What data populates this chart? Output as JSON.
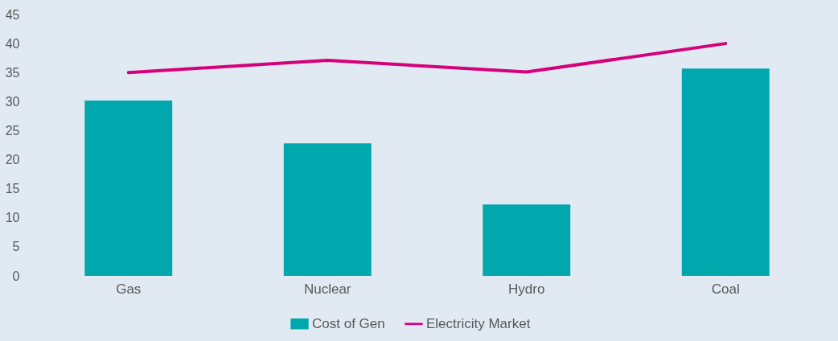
{
  "chart_data": {
    "type": "bar",
    "categories": [
      "Gas",
      "Nuclear",
      "Hydro",
      "Coal"
    ],
    "series": [
      {
        "name": "Cost of Gen",
        "color": "#00a7ad",
        "values": [
          30.2,
          22.8,
          12.3,
          35.7
        ]
      },
      {
        "name": "Electricity Market",
        "type": "line",
        "color": "#d6007a",
        "values": [
          35,
          37.1,
          35.1,
          40
        ]
      }
    ],
    "ylim": [
      0,
      45
    ],
    "yticks": [
      0,
      5,
      10,
      15,
      20,
      25,
      30,
      35,
      40,
      45
    ],
    "legend": "bottom"
  }
}
